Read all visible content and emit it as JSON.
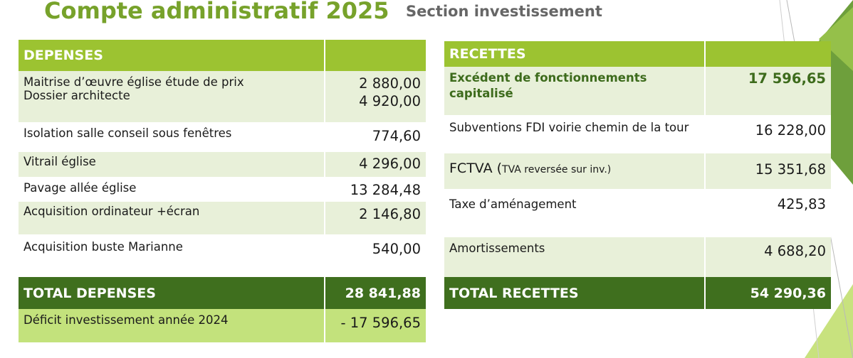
{
  "header": {
    "title": "Compte administratif 2025",
    "subtitle": "Section investissement"
  },
  "depenses": {
    "heading": "DEPENSES",
    "rows": [
      {
        "label1": "Maitrise d’œuvre église étude de prix",
        "label2": "Dossier architecte",
        "amount1": "2 880,00",
        "amount2": "4 920,00"
      },
      {
        "label": "Isolation salle conseil sous fenêtres",
        "amount": "774,60"
      },
      {
        "label": "Vitrail église",
        "amount": "4 296,00"
      },
      {
        "label": "Pavage allée église",
        "amount": "13 284,48"
      },
      {
        "label": "Acquisition ordinateur +écran",
        "amount": "2 146,80"
      },
      {
        "label": "Acquisition buste Marianne",
        "amount": "540,00"
      }
    ],
    "total_label": "TOTAL DEPENSES",
    "total_amount": "28 841,88",
    "deficit_label": "Déficit investissement  année 2024",
    "deficit_amount": "- 17 596,65"
  },
  "recettes": {
    "heading": "RECETTES",
    "rows": [
      {
        "label": "Excédent de fonctionnements capitalisé",
        "amount": "17 596,65"
      },
      {
        "label": "Subventions FDI voirie chemin de la tour",
        "amount": "16 228,00"
      },
      {
        "label_main": "FCTVA (",
        "label_fine": "TVA reversée sur inv.)",
        "amount": "15 351,68"
      },
      {
        "label": "Taxe d’aménagement",
        "amount": "425,83"
      },
      {
        "label": "Amortissements",
        "amount": "4 688,20"
      }
    ],
    "total_label": "TOTAL  RECETTES",
    "total_amount": "54 290,36"
  },
  "theme": {
    "title_green": "#77a22b",
    "header_green": "#9cc331",
    "total_green": "#3f6f1e",
    "light_row": "#e8f0d9",
    "deficit_row": "#c3e27c"
  }
}
